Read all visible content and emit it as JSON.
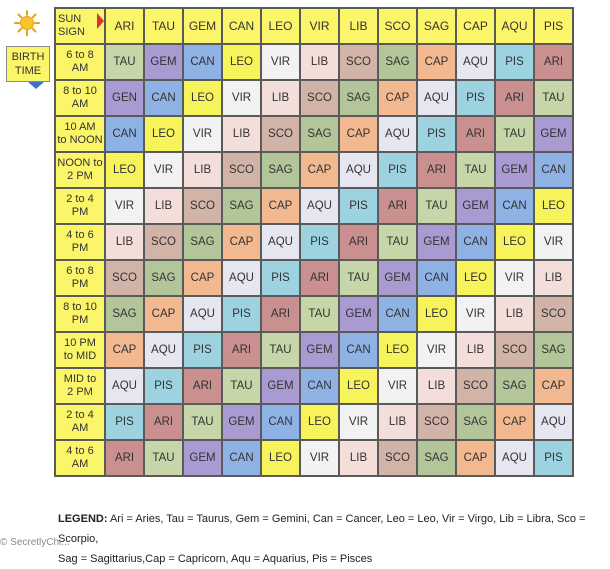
{
  "header": {
    "sun_sign_label": "SUN SIGN",
    "birth_time_label": "BIRTH TIME",
    "signs": [
      "ARI",
      "TAU",
      "GEM",
      "CAN",
      "LEO",
      "VIR",
      "LIB",
      "SCO",
      "SAG",
      "CAP",
      "AQU",
      "PIS"
    ]
  },
  "colors": {
    "header": "#fbf56a",
    "ARI": "#c9908f",
    "TAU": "#c6d6a8",
    "GEM": "#a99bd2",
    "CAN": "#8fb2e4",
    "LEO": "#f7f35a",
    "VIR": "#f2f2f2",
    "LIB": "#f3ded9",
    "SCO": "#d2b3a7",
    "SAG": "#b3c69a",
    "CAP": "#f2b890",
    "AQU": "#e6e6f0",
    "PIS": "#9dd3e0"
  },
  "rows": [
    {
      "time": [
        "6 to 8",
        "AM"
      ],
      "cells": [
        "TAU",
        "GEM",
        "CAN",
        "LEO",
        "VIR",
        "LIB",
        "SCO",
        "SAG",
        "CAP",
        "AQU",
        "PIS",
        "ARI"
      ]
    },
    {
      "time": [
        "8 to 10",
        "AM"
      ],
      "cells": [
        "GEN",
        "CAN",
        "LEO",
        "VIR",
        "LIB",
        "SCO",
        "SAG",
        "CAP",
        "AQU",
        "PIS",
        "ARI",
        "TAU"
      ]
    },
    {
      "time": [
        "10 AM",
        "to NOON"
      ],
      "cells": [
        "CAN",
        "LEO",
        "VIR",
        "LIB",
        "SCO",
        "SAG",
        "CAP",
        "AQU",
        "PIS",
        "ARI",
        "TAU",
        "GEM"
      ]
    },
    {
      "time": [
        "NOON to",
        "2 PM"
      ],
      "cells": [
        "LEO",
        "VIR",
        "LIB",
        "SCO",
        "SAG",
        "CAP",
        "AQU",
        "PIS",
        "ARI",
        "TAU",
        "GEM",
        "CAN"
      ]
    },
    {
      "time": [
        "2 to 4",
        "PM"
      ],
      "cells": [
        "VIR",
        "LIB",
        "SCO",
        "SAG",
        "CAP",
        "AQU",
        "PIS",
        "ARI",
        "TAU",
        "GEM",
        "CAN",
        "LEO"
      ]
    },
    {
      "time": [
        "4 to 6",
        "PM"
      ],
      "cells": [
        "LIB",
        "SCO",
        "SAG",
        "CAP",
        "AQU",
        "PIS",
        "ARI",
        "TAU",
        "GEM",
        "CAN",
        "LEO",
        "VIR"
      ]
    },
    {
      "time": [
        "6 to 8",
        "PM"
      ],
      "cells": [
        "SCO",
        "SAG",
        "CAP",
        "AQU",
        "PIS",
        "ARI",
        "TAU",
        "GEM",
        "CAN",
        "LEO",
        "VIR",
        "LIB"
      ]
    },
    {
      "time": [
        "8 to 10",
        "PM"
      ],
      "cells": [
        "SAG",
        "CAP",
        "AQU",
        "PIS",
        "ARI",
        "TAU",
        "GEM",
        "CAN",
        "LEO",
        "VIR",
        "LIB",
        "SCO"
      ]
    },
    {
      "time": [
        "10 PM",
        "to MID"
      ],
      "cells": [
        "CAP",
        "AQU",
        "PIS",
        "ARI",
        "TAU",
        "GEM",
        "CAN",
        "LEO",
        "VIR",
        "LIB",
        "SCO",
        "SAG"
      ]
    },
    {
      "time": [
        "MID to",
        "2 PM"
      ],
      "cells": [
        "AQU",
        "PIS",
        "ARI",
        "TAU",
        "GEM",
        "CAN",
        "LEO",
        "VIR",
        "LIB",
        "SCO",
        "SAG",
        "CAP"
      ]
    },
    {
      "time": [
        "2 to 4",
        "AM"
      ],
      "cells": [
        "PIS",
        "ARI",
        "TAU",
        "GEM",
        "CAN",
        "LEO",
        "VIR",
        "LIB",
        "SCO",
        "SAG",
        "CAP",
        "AQU"
      ]
    },
    {
      "time": [
        "4 to 6",
        "AM"
      ],
      "cells": [
        "ARI",
        "TAU",
        "GEM",
        "CAN",
        "LEO",
        "VIR",
        "LIB",
        "SCO",
        "SAG",
        "CAP",
        "AQU",
        "PIS"
      ]
    }
  ],
  "legend": {
    "title": "LEGEND:",
    "line1": "Ari = Aries, Tau = Taurus, Gem = Gemini, Can = Cancer, Leo = Leo, Vir = Virgo, Lib = Libra, Sco = Scorpio,",
    "line2": "Sag = Sagittarius,Cap = Capricorn, Aqu = Aquarius, Pis = Pisces"
  },
  "watermark": "© SecretlyChi..."
}
